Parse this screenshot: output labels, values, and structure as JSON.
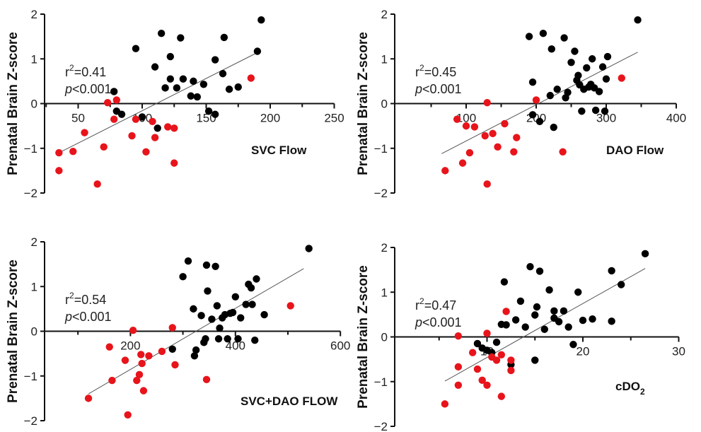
{
  "chart_data": [
    {
      "type": "scatter",
      "title": "SVC Flow",
      "xlabel": "",
      "ylabel": "Prenatal Brain Z-score",
      "xlim": [
        0,
        250
      ],
      "ylim": [
        -2,
        2
      ],
      "xticks": [
        50,
        100,
        150,
        200,
        250
      ],
      "xtick_labels": [
        "50",
        "100",
        "150",
        "200",
        "250"
      ],
      "yticks": [
        -2,
        -1,
        0,
        1,
        2
      ],
      "ytick_labels": [
        "−2",
        "−1",
        "0",
        "1",
        "2"
      ],
      "annotation": {
        "r2_base": "r",
        "r2_sup": "2",
        "r2_val": "=0.41",
        "p_italic": "p",
        "p_val": "<0.001"
      },
      "trendline": {
        "x": [
          35,
          192
        ],
        "y": [
          -1.1,
          1.17
        ]
      },
      "colors": {
        "black_series": "#000000",
        "red_series": "#e8141b"
      },
      "series": [
        {
          "color": "black",
          "points": [
            [
              78,
              0.27
            ],
            [
              80,
              -0.17
            ],
            [
              84,
              -0.24
            ],
            [
              95,
              1.23
            ],
            [
              100,
              -0.3
            ],
            [
              110,
              0.82
            ],
            [
              112,
              -0.55
            ],
            [
              115,
              1.57
            ],
            [
              118,
              0.35
            ],
            [
              122,
              1.05
            ],
            [
              122,
              0.55
            ],
            [
              127,
              0.35
            ],
            [
              130,
              1.47
            ],
            [
              132,
              0.55
            ],
            [
              138,
              0.17
            ],
            [
              140,
              0.5
            ],
            [
              143,
              0.15
            ],
            [
              148,
              0.43
            ],
            [
              152,
              -0.17
            ],
            [
              157,
              -0.24
            ],
            [
              157,
              0.98
            ],
            [
              163,
              0.67
            ],
            [
              164,
              1.48
            ],
            [
              168,
              0.32
            ],
            [
              175,
              0.37
            ],
            [
              190,
              1.17
            ],
            [
              193,
              1.87
            ]
          ]
        },
        {
          "color": "red",
          "points": [
            [
              35,
              -1.1
            ],
            [
              35,
              -1.5
            ],
            [
              46,
              -1.07
            ],
            [
              55,
              -0.65
            ],
            [
              65,
              -1.8
            ],
            [
              70,
              -0.97
            ],
            [
              73,
              0.02
            ],
            [
              78,
              -0.35
            ],
            [
              80,
              0.08
            ],
            [
              92,
              -0.72
            ],
            [
              95,
              -0.35
            ],
            [
              103,
              -1.08
            ],
            [
              108,
              -0.4
            ],
            [
              110,
              -0.76
            ],
            [
              120,
              -0.52
            ],
            [
              125,
              -1.33
            ],
            [
              125,
              -0.55
            ],
            [
              185,
              0.57
            ]
          ]
        }
      ]
    },
    {
      "type": "scatter",
      "title": "DAO Flow",
      "xlabel": "",
      "ylabel": "Prenatal Brain Z-score",
      "xlim": [
        0,
        400
      ],
      "ylim": [
        -2,
        2
      ],
      "xticks": [
        100,
        200,
        300,
        400
      ],
      "xtick_labels": [
        "100",
        "200",
        "300",
        "400"
      ],
      "yticks": [
        -2,
        -1,
        0,
        1,
        2
      ],
      "ytick_labels": [
        "−2",
        "−1",
        "0",
        "1",
        "2"
      ],
      "annotation": {
        "r2_base": "r",
        "r2_sup": "2",
        "r2_val": "=0.45",
        "p_italic": "p",
        "p_val": "<0.001"
      },
      "trendline": {
        "x": [
          65,
          345
        ],
        "y": [
          -1.12,
          1.15
        ]
      },
      "colors": {
        "black_series": "#000000",
        "red_series": "#e8141b"
      },
      "series": [
        {
          "color": "black",
          "points": [
            [
              190,
              1.5
            ],
            [
              195,
              -0.25
            ],
            [
              195,
              0.48
            ],
            [
              205,
              -0.4
            ],
            [
              210,
              1.57
            ],
            [
              220,
              0.18
            ],
            [
              222,
              1.22
            ],
            [
              225,
              -0.53
            ],
            [
              230,
              0.32
            ],
            [
              240,
              1.47
            ],
            [
              242,
              0.13
            ],
            [
              245,
              0.25
            ],
            [
              250,
              0.92
            ],
            [
              255,
              1.17
            ],
            [
              258,
              0.52
            ],
            [
              260,
              0.63
            ],
            [
              262,
              0.42
            ],
            [
              265,
              -0.17
            ],
            [
              268,
              0.32
            ],
            [
              272,
              0.8
            ],
            [
              275,
              0.37
            ],
            [
              278,
              0.43
            ],
            [
              280,
              1.0
            ],
            [
              283,
              0.35
            ],
            [
              285,
              -0.15
            ],
            [
              290,
              0.27
            ],
            [
              295,
              0.82
            ],
            [
              298,
              -0.17
            ],
            [
              300,
              0.55
            ],
            [
              302,
              1.05
            ],
            [
              345,
              1.87
            ]
          ]
        },
        {
          "color": "red",
          "points": [
            [
              70,
              -1.5
            ],
            [
              87,
              -0.35
            ],
            [
              95,
              -1.33
            ],
            [
              100,
              -0.5
            ],
            [
              105,
              -1.1
            ],
            [
              112,
              -0.52
            ],
            [
              127,
              -0.72
            ],
            [
              130,
              -1.8
            ],
            [
              130,
              0.02
            ],
            [
              138,
              -0.67
            ],
            [
              145,
              -0.97
            ],
            [
              155,
              -0.45
            ],
            [
              168,
              -1.08
            ],
            [
              172,
              -0.76
            ],
            [
              200,
              0.08
            ],
            [
              238,
              -1.08
            ],
            [
              322,
              0.57
            ]
          ]
        }
      ]
    },
    {
      "type": "scatter",
      "title": "SVC+DAO FLOW",
      "xlabel": "",
      "ylabel": "Prenatal Brain Z-score",
      "xlim": [
        0,
        600
      ],
      "ylim": [
        -2,
        2
      ],
      "xticks": [
        200,
        400,
        600
      ],
      "xtick_labels": [
        "200",
        "400",
        "600"
      ],
      "yticks": [
        -2,
        -1,
        0,
        1,
        2
      ],
      "ytick_labels": [
        "−2",
        "−1",
        "0",
        "1",
        "2"
      ],
      "annotation": {
        "r2_base": "r",
        "r2_sup": "2",
        "r2_val": "=0.54",
        "p_italic": "p",
        "p_val": "<0.001"
      },
      "trendline": {
        "x": [
          120,
          530
        ],
        "y": [
          -1.4,
          1.4
        ]
      },
      "colors": {
        "black_series": "#000000",
        "red_series": "#e8141b"
      },
      "series": [
        {
          "color": "black",
          "points": [
            [
              280,
              -0.4
            ],
            [
              300,
              1.22
            ],
            [
              310,
              1.57
            ],
            [
              320,
              0.5
            ],
            [
              322,
              -0.55
            ],
            [
              325,
              -0.42
            ],
            [
              335,
              0.35
            ],
            [
              340,
              -0.25
            ],
            [
              343,
              -0.17
            ],
            [
              345,
              1.48
            ],
            [
              347,
              0.9
            ],
            [
              355,
              0.27
            ],
            [
              362,
              1.45
            ],
            [
              365,
              0.57
            ],
            [
              368,
              -0.17
            ],
            [
              370,
              0.07
            ],
            [
              375,
              0.3
            ],
            [
              380,
              0.37
            ],
            [
              385,
              -0.17
            ],
            [
              390,
              0.4
            ],
            [
              395,
              0.42
            ],
            [
              400,
              0.77
            ],
            [
              405,
              -0.17
            ],
            [
              410,
              0.3
            ],
            [
              420,
              0.6
            ],
            [
              425,
              1.05
            ],
            [
              430,
              0.97
            ],
            [
              432,
              0.6
            ],
            [
              437,
              -0.2
            ],
            [
              440,
              1.17
            ],
            [
              455,
              0.37
            ],
            [
              540,
              1.85
            ]
          ]
        },
        {
          "color": "red",
          "points": [
            [
              120,
              -1.5
            ],
            [
              160,
              -0.35
            ],
            [
              165,
              -1.1
            ],
            [
              190,
              -0.65
            ],
            [
              195,
              -1.87
            ],
            [
              205,
              0.02
            ],
            [
              212,
              -1.1
            ],
            [
              217,
              -0.97
            ],
            [
              220,
              -0.52
            ],
            [
              222,
              -0.72
            ],
            [
              225,
              -1.33
            ],
            [
              235,
              -0.55
            ],
            [
              260,
              -0.45
            ],
            [
              280,
              0.08
            ],
            [
              285,
              -0.75
            ],
            [
              345,
              -1.08
            ],
            [
              505,
              0.57
            ]
          ]
        }
      ]
    },
    {
      "type": "scatter",
      "title": "cDO",
      "title_sub": "2",
      "xlabel": "",
      "ylabel": "Prenatal Brain Z-score",
      "xlim": [
        0,
        30
      ],
      "ylim": [
        -2,
        2
      ],
      "xticks": [
        10,
        20,
        30
      ],
      "xtick_labels": [
        "10",
        "20",
        "30"
      ],
      "yticks": [
        -2,
        -1,
        0,
        1,
        2
      ],
      "ytick_labels": [
        "−2",
        "−1",
        "0",
        "1",
        "2"
      ],
      "annotation": {
        "r2_base": "r",
        "r2_sup": "2",
        "r2_val": "=0.47",
        "p_italic": "p",
        "p_val": "<0.001"
      },
      "trendline": {
        "x": [
          5.6,
          26.5
        ],
        "y": [
          -0.99,
          1.53
        ]
      },
      "colors": {
        "black_series": "#000000",
        "red_series": "#e8141b"
      },
      "series": [
        {
          "color": "black",
          "points": [
            [
              9,
              -0.15
            ],
            [
              9.5,
              -0.25
            ],
            [
              10,
              -0.3
            ],
            [
              10.5,
              -0.35
            ],
            [
              11,
              -0.12
            ],
            [
              11.5,
              0.28
            ],
            [
              11.8,
              1.23
            ],
            [
              12,
              0.27
            ],
            [
              12.5,
              -0.62
            ],
            [
              13,
              0.38
            ],
            [
              13.5,
              0.8
            ],
            [
              14,
              0.22
            ],
            [
              14.5,
              1.57
            ],
            [
              15,
              -0.52
            ],
            [
              15,
              0.49
            ],
            [
              15.2,
              0.67
            ],
            [
              15.5,
              1.47
            ],
            [
              16,
              0.17
            ],
            [
              16.5,
              1.05
            ],
            [
              17,
              0.42
            ],
            [
              17,
              0.58
            ],
            [
              17.5,
              0.34
            ],
            [
              18,
              0.58
            ],
            [
              18.5,
              0.22
            ],
            [
              19,
              -0.17
            ],
            [
              19.5,
              1.0
            ],
            [
              20,
              0.37
            ],
            [
              21,
              0.4
            ],
            [
              23,
              1.48
            ],
            [
              23,
              0.35
            ],
            [
              24,
              1.17
            ],
            [
              26.5,
              1.86
            ]
          ]
        },
        {
          "color": "red",
          "points": [
            [
              5.6,
              -1.5
            ],
            [
              7,
              -0.67
            ],
            [
              7,
              -1.08
            ],
            [
              7,
              0.02
            ],
            [
              8.5,
              -0.35
            ],
            [
              9,
              -0.72
            ],
            [
              9.5,
              -0.97
            ],
            [
              10,
              0.08
            ],
            [
              10,
              -1.08
            ],
            [
              10.5,
              -0.45
            ],
            [
              11,
              -0.52
            ],
            [
              11.5,
              -1.33
            ],
            [
              11.5,
              -0.4
            ],
            [
              12,
              0.57
            ],
            [
              12.5,
              -0.52
            ],
            [
              12.5,
              -0.75
            ]
          ]
        }
      ]
    }
  ]
}
